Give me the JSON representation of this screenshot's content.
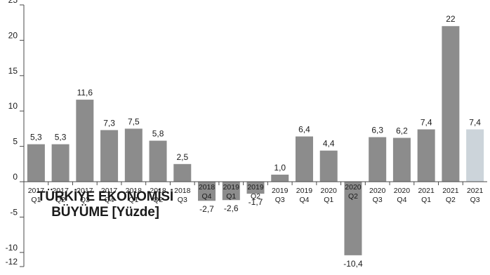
{
  "title": {
    "line1": "TÜRKİYE EKONOMİSİ",
    "line2": "BÜYÜME [Yüzde]"
  },
  "colors": {
    "bar": "#8c8c8c",
    "bar_highlight": "#ccd4da",
    "axis": "#4a4a4a",
    "text": "#1a1a1a"
  },
  "chart_data": {
    "type": "bar",
    "title": "TÜRKİYE EKONOMİSİ BÜYÜME [Yüzde]",
    "xlabel": "",
    "ylabel": "",
    "ylim": [
      -12,
      25
    ],
    "yticks": [
      25,
      20,
      15,
      10,
      5,
      0,
      -5,
      -10,
      -12
    ],
    "grid": false,
    "categories": [
      [
        "2017",
        "Q1"
      ],
      [
        "2017",
        "Q2"
      ],
      [
        "2017",
        "Q3"
      ],
      [
        "2017",
        "Q4"
      ],
      [
        "2018",
        "Q1"
      ],
      [
        "2018",
        "Q2"
      ],
      [
        "2018",
        "Q3"
      ],
      [
        "2018",
        "Q4"
      ],
      [
        "2019",
        "Q1"
      ],
      [
        "2019",
        "Q2"
      ],
      [
        "2019",
        "Q3"
      ],
      [
        "2019",
        "Q4"
      ],
      [
        "2020",
        "Q1"
      ],
      [
        "2020",
        "Q2"
      ],
      [
        "2020",
        "Q3"
      ],
      [
        "2020",
        "Q4"
      ],
      [
        "2021",
        "Q1"
      ],
      [
        "2021",
        "Q2"
      ],
      [
        "2021",
        "Q3"
      ]
    ],
    "values": [
      5.3,
      5.3,
      11.6,
      7.3,
      7.5,
      5.8,
      2.5,
      -2.7,
      -2.6,
      -1.7,
      1.0,
      6.4,
      4.4,
      -10.4,
      6.3,
      6.2,
      7.4,
      22,
      7.4
    ],
    "labels": [
      "5,3",
      "5,3",
      "11,6",
      "7,3",
      "7,5",
      "5,8",
      "2,5",
      "-2,7",
      "-2,6",
      "-1,7",
      "1,0",
      "6,4",
      "4,4",
      "-10,4",
      "6,3",
      "6,2",
      "7,4",
      "22",
      "7,4"
    ],
    "highlight_index": 18
  }
}
